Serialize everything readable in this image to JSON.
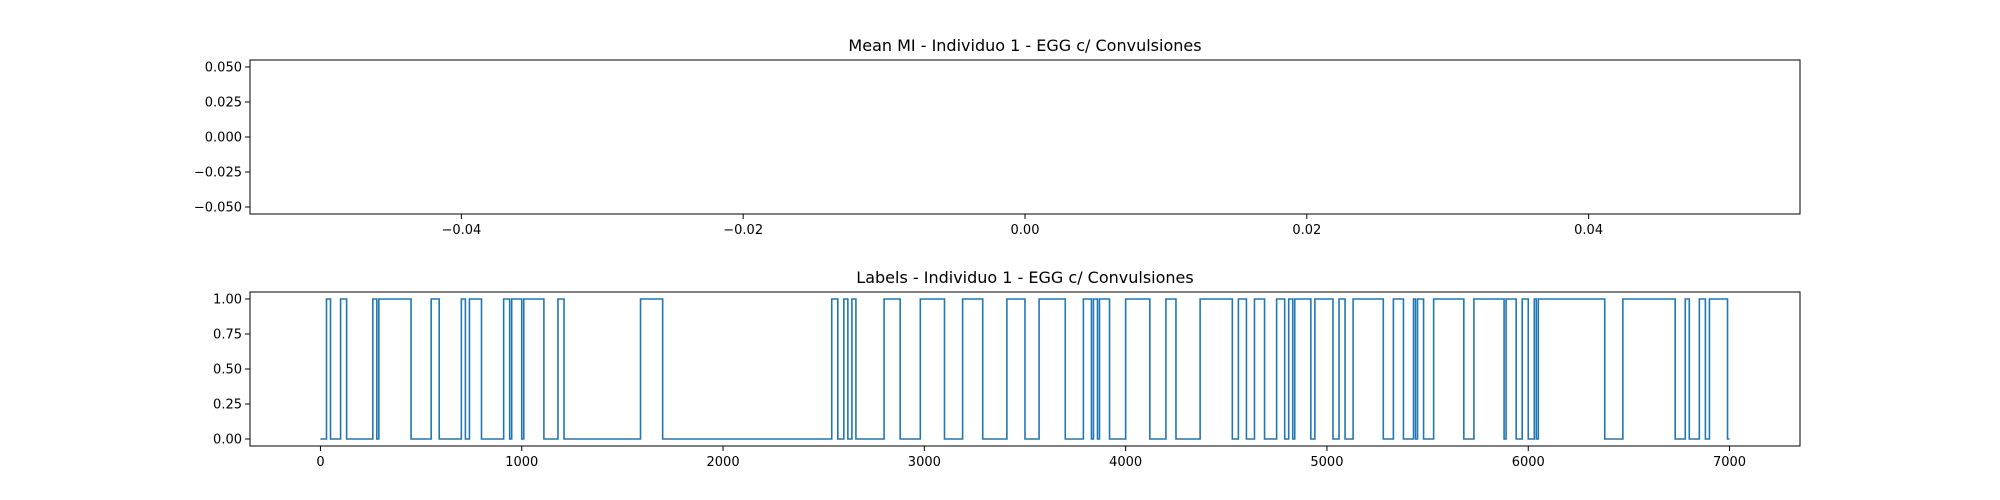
{
  "colors": {
    "series": "#1f77b4",
    "background": "#ffffff",
    "axis": "#000000"
  },
  "chart_data": [
    {
      "type": "line",
      "title": "Mean MI - Individuo 1 - EGG c/ Convulsiones",
      "xlabel": "",
      "ylabel": "",
      "xlim": [
        -0.055,
        0.055
      ],
      "ylim": [
        -0.055,
        0.055
      ],
      "x_ticks": [
        -0.04,
        -0.02,
        0.0,
        0.02,
        0.04
      ],
      "x_tick_labels": [
        "−0.04",
        "−0.02",
        "0.00",
        "0.02",
        "0.04"
      ],
      "y_ticks": [
        0.05,
        0.025,
        0.0,
        -0.025,
        -0.05
      ],
      "y_tick_labels": [
        "0.050",
        "0.025",
        "0.000",
        "−0.025",
        "−0.050"
      ],
      "grid": false,
      "series": [
        {
          "x": [],
          "y": []
        }
      ]
    },
    {
      "type": "line",
      "step": true,
      "title": "Labels - Individuo 1 - EGG c/ Convulsiones",
      "xlabel": "",
      "ylabel": "",
      "xlim": [
        -350,
        7350
      ],
      "ylim": [
        -0.05,
        1.05
      ],
      "x_ticks": [
        0,
        1000,
        2000,
        3000,
        4000,
        5000,
        6000,
        7000
      ],
      "x_tick_labels": [
        "0",
        "1000",
        "2000",
        "3000",
        "4000",
        "5000",
        "6000",
        "7000"
      ],
      "y_ticks": [
        1.0,
        0.75,
        0.5,
        0.25,
        0.0
      ],
      "y_tick_labels": [
        "1.00",
        "0.75",
        "0.50",
        "0.25",
        "0.00"
      ],
      "grid": false,
      "ones_intervals": [
        [
          30,
          50
        ],
        [
          100,
          130
        ],
        [
          260,
          280
        ],
        [
          290,
          450
        ],
        [
          550,
          590
        ],
        [
          700,
          720
        ],
        [
          740,
          800
        ],
        [
          910,
          940
        ],
        [
          950,
          1000
        ],
        [
          1010,
          1110
        ],
        [
          1180,
          1210
        ],
        [
          1590,
          1700
        ],
        [
          2540,
          2570
        ],
        [
          2600,
          2620
        ],
        [
          2640,
          2660
        ],
        [
          2800,
          2880
        ],
        [
          2980,
          3100
        ],
        [
          3190,
          3290
        ],
        [
          3410,
          3500
        ],
        [
          3570,
          3700
        ],
        [
          3790,
          3830
        ],
        [
          3840,
          3860
        ],
        [
          3870,
          3920
        ],
        [
          4000,
          4120
        ],
        [
          4200,
          4250
        ],
        [
          4370,
          4530
        ],
        [
          4560,
          4600
        ],
        [
          4640,
          4690
        ],
        [
          4750,
          4790
        ],
        [
          4810,
          4830
        ],
        [
          4840,
          4920
        ],
        [
          4940,
          5030
        ],
        [
          5060,
          5090
        ],
        [
          5130,
          5280
        ],
        [
          5330,
          5380
        ],
        [
          5430,
          5440
        ],
        [
          5450,
          5480
        ],
        [
          5530,
          5680
        ],
        [
          5730,
          5880
        ],
        [
          5890,
          5940
        ],
        [
          5970,
          6000
        ],
        [
          6030,
          6040
        ],
        [
          6050,
          6380
        ],
        [
          6470,
          6730
        ],
        [
          6780,
          6800
        ],
        [
          6850,
          6880
        ],
        [
          6900,
          6990
        ]
      ],
      "x_start": 0,
      "x_end": 7000
    }
  ]
}
